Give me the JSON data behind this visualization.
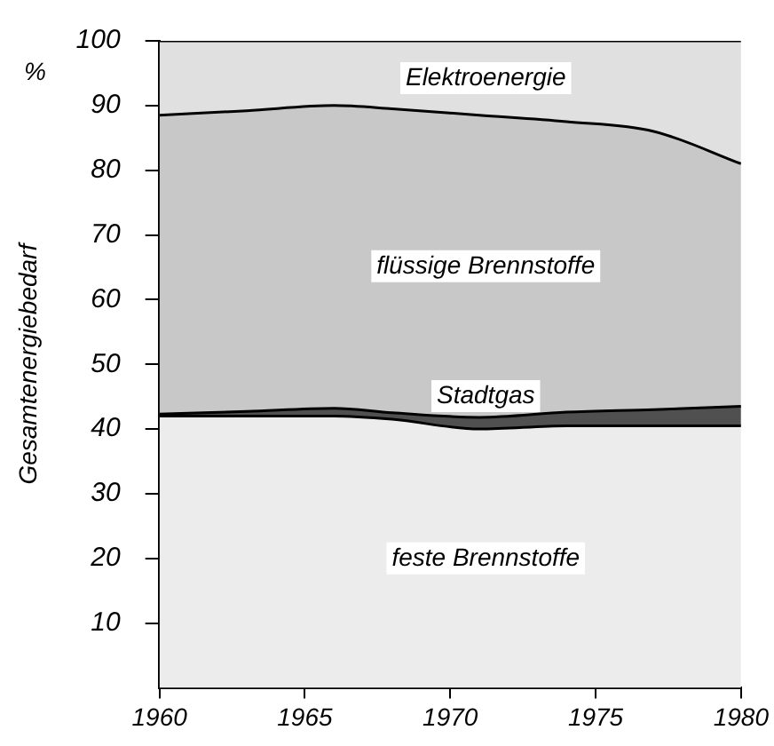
{
  "chart_data": {
    "type": "area",
    "stacked": true,
    "ylabel": "Gesamtenergiebedarf",
    "annotations": [
      "%"
    ],
    "x": [
      1960,
      1963,
      1966,
      1968,
      1971,
      1974,
      1977,
      1980
    ],
    "series": [
      {
        "name": "feste Brennstoffe",
        "color": "#ececec",
        "values": [
          42,
          42,
          42,
          41.5,
          40,
          40.5,
          40.5,
          40.5
        ]
      },
      {
        "name": "Stadtgas",
        "color": "#505050",
        "values": [
          0.3,
          0.7,
          1.2,
          1.0,
          1.8,
          2.1,
          2.5,
          3.0
        ]
      },
      {
        "name": "flüssige Brennstoffe",
        "color": "#c8c8c8",
        "values": [
          46.2,
          46.5,
          46.8,
          47,
          46.7,
          44.9,
          43,
          37.5
        ]
      },
      {
        "name": "Elektroenergie",
        "color": "#e0e0e0",
        "values": [
          11.5,
          10.8,
          10,
          10.5,
          11.5,
          12.5,
          14,
          19
        ]
      }
    ],
    "xlim": [
      1960,
      1980
    ],
    "xticks": [
      1960,
      1965,
      1970,
      1975,
      1980
    ],
    "ylim": [
      0,
      100
    ],
    "yticks": [
      10,
      20,
      30,
      40,
      50,
      60,
      70,
      80,
      90,
      100
    ],
    "grid": false,
    "legend": false,
    "line_style": "solid",
    "marker": "none"
  }
}
